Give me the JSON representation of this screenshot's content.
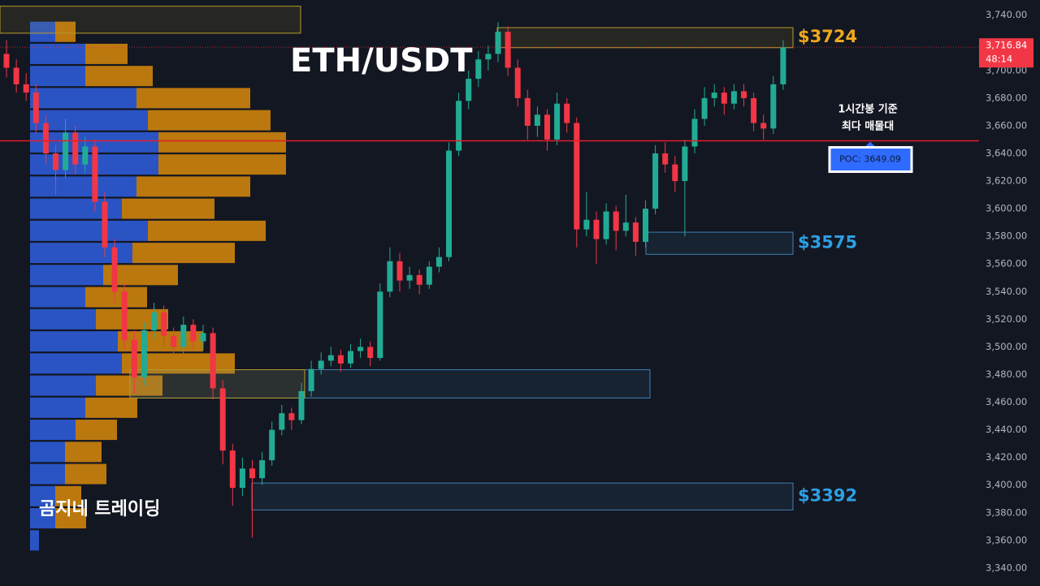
{
  "chart_data": {
    "type": "candlestick",
    "title": "ETH/USDT",
    "watermark": "곰지네 트레이딩",
    "annotation": [
      "1시간봉 기준",
      "최다 매물대"
    ],
    "ylim": [
      3327,
      3751
    ],
    "yticks": [
      {
        "value": 3340,
        "label": "3,340.00"
      },
      {
        "value": 3360,
        "label": "3,360.00"
      },
      {
        "value": 3380,
        "label": "3,380.00"
      },
      {
        "value": 3400,
        "label": "3,400.00"
      },
      {
        "value": 3420,
        "label": "3,420.00"
      },
      {
        "value": 3440,
        "label": "3,440.00"
      },
      {
        "value": 3460,
        "label": "3,460.00"
      },
      {
        "value": 3480,
        "label": "3,480.00"
      },
      {
        "value": 3500,
        "label": "3,500.00"
      },
      {
        "value": 3520,
        "label": "3,520.00"
      },
      {
        "value": 3540,
        "label": "3,540.00"
      },
      {
        "value": 3560,
        "label": "3,560.00"
      },
      {
        "value": 3580,
        "label": "3,580.00"
      },
      {
        "value": 3600,
        "label": "3,600.00"
      },
      {
        "value": 3620,
        "label": "3,620.00"
      },
      {
        "value": 3640,
        "label": "3,640.00"
      },
      {
        "value": 3660,
        "label": "3,660.00"
      },
      {
        "value": 3680,
        "label": "3,680.00"
      },
      {
        "value": 3700,
        "label": "3,700.00"
      },
      {
        "value": 3720,
        "label": "3,720.00"
      },
      {
        "value": 3740,
        "label": "3,740.00"
      }
    ],
    "up_color": "#22ab94",
    "down_color": "#f23645",
    "ohlc": [
      [
        3712,
        3722,
        3695,
        3702
      ],
      [
        3702,
        3708,
        3684,
        3690
      ],
      [
        3690,
        3698,
        3678,
        3684
      ],
      [
        3684,
        3690,
        3655,
        3662
      ],
      [
        3662,
        3668,
        3632,
        3640
      ],
      [
        3640,
        3646,
        3610,
        3628
      ],
      [
        3628,
        3665,
        3622,
        3655
      ],
      [
        3655,
        3660,
        3625,
        3632
      ],
      [
        3632,
        3652,
        3626,
        3645
      ],
      [
        3645,
        3650,
        3598,
        3605
      ],
      [
        3605,
        3612,
        3565,
        3572
      ],
      [
        3572,
        3578,
        3532,
        3540
      ],
      [
        3540,
        3546,
        3498,
        3505
      ],
      [
        3505,
        3512,
        3466,
        3478
      ],
      [
        3478,
        3518,
        3472,
        3512
      ],
      [
        3512,
        3532,
        3506,
        3525
      ],
      [
        3525,
        3530,
        3500,
        3508
      ],
      [
        3508,
        3514,
        3494,
        3500
      ],
      [
        3500,
        3522,
        3495,
        3516
      ],
      [
        3516,
        3520,
        3498,
        3504
      ],
      [
        3504,
        3516,
        3498,
        3510
      ],
      [
        3510,
        3514,
        3462,
        3470
      ],
      [
        3470,
        3476,
        3415,
        3425
      ],
      [
        3425,
        3430,
        3385,
        3398
      ],
      [
        3398,
        3420,
        3392,
        3412
      ],
      [
        3412,
        3418,
        3362,
        3405
      ],
      [
        3405,
        3424,
        3400,
        3418
      ],
      [
        3418,
        3446,
        3414,
        3440
      ],
      [
        3440,
        3458,
        3436,
        3452
      ],
      [
        3452,
        3456,
        3440,
        3447
      ],
      [
        3447,
        3474,
        3444,
        3468
      ],
      [
        3468,
        3490,
        3464,
        3484
      ],
      [
        3484,
        3496,
        3480,
        3490
      ],
      [
        3490,
        3500,
        3486,
        3494
      ],
      [
        3494,
        3498,
        3482,
        3488
      ],
      [
        3488,
        3502,
        3485,
        3497
      ],
      [
        3497,
        3506,
        3492,
        3500
      ],
      [
        3500,
        3504,
        3486,
        3492
      ],
      [
        3492,
        3546,
        3490,
        3540
      ],
      [
        3540,
        3572,
        3536,
        3562
      ],
      [
        3562,
        3568,
        3540,
        3548
      ],
      [
        3548,
        3558,
        3542,
        3552
      ],
      [
        3552,
        3556,
        3538,
        3545
      ],
      [
        3545,
        3562,
        3542,
        3558
      ],
      [
        3558,
        3572,
        3554,
        3565
      ],
      [
        3565,
        3648,
        3562,
        3642
      ],
      [
        3642,
        3684,
        3638,
        3678
      ],
      [
        3678,
        3700,
        3672,
        3694
      ],
      [
        3694,
        3714,
        3688,
        3708
      ],
      [
        3708,
        3718,
        3700,
        3712
      ],
      [
        3712,
        3735,
        3706,
        3728
      ],
      [
        3728,
        3732,
        3696,
        3702
      ],
      [
        3702,
        3708,
        3674,
        3680
      ],
      [
        3680,
        3686,
        3650,
        3660
      ],
      [
        3660,
        3674,
        3652,
        3668
      ],
      [
        3668,
        3672,
        3642,
        3650
      ],
      [
        3650,
        3684,
        3646,
        3676
      ],
      [
        3676,
        3680,
        3655,
        3662
      ],
      [
        3662,
        3666,
        3572,
        3585
      ],
      [
        3585,
        3612,
        3580,
        3592
      ],
      [
        3592,
        3598,
        3560,
        3578
      ],
      [
        3578,
        3604,
        3574,
        3598
      ],
      [
        3598,
        3602,
        3570,
        3584
      ],
      [
        3584,
        3610,
        3580,
        3590
      ],
      [
        3590,
        3594,
        3566,
        3576
      ],
      [
        3576,
        3606,
        3572,
        3600
      ],
      [
        3600,
        3646,
        3596,
        3640
      ],
      [
        3640,
        3648,
        3626,
        3632
      ],
      [
        3632,
        3638,
        3612,
        3620
      ],
      [
        3620,
        3650,
        3580,
        3645
      ],
      [
        3645,
        3672,
        3640,
        3665
      ],
      [
        3665,
        3688,
        3660,
        3680
      ],
      [
        3680,
        3690,
        3674,
        3684
      ],
      [
        3684,
        3688,
        3668,
        3676
      ],
      [
        3676,
        3690,
        3672,
        3685
      ],
      [
        3685,
        3690,
        3674,
        3680
      ],
      [
        3680,
        3684,
        3656,
        3662
      ],
      [
        3662,
        3668,
        3650,
        3658
      ],
      [
        3658,
        3696,
        3654,
        3690
      ],
      [
        3690,
        3722,
        3686,
        3716.84
      ]
    ],
    "volume_profile": {
      "buy_color": "#2f5fe0",
      "sell_color": "#d98a0b",
      "prices": [
        3728,
        3712,
        3696,
        3680,
        3664,
        3648,
        3632,
        3616,
        3600,
        3584,
        3568,
        3552,
        3536,
        3520,
        3504,
        3488,
        3472,
        3456,
        3440,
        3424,
        3408,
        3392,
        3376,
        3360
      ],
      "buy": [
        31,
        68,
        68,
        131,
        145,
        158,
        158,
        131,
        113,
        145,
        126,
        90,
        68,
        81,
        108,
        113,
        81,
        68,
        56,
        43,
        43,
        31,
        31,
        11
      ],
      "sell": [
        25,
        52,
        83,
        140,
        151,
        157,
        157,
        140,
        114,
        145,
        126,
        92,
        76,
        89,
        105,
        139,
        82,
        64,
        51,
        45,
        51,
        32,
        38,
        0
      ]
    },
    "zones": [
      {
        "low": 3727,
        "high": 3746.5,
        "color": "#b89a2c"
      },
      {
        "low": 3716.5,
        "high": 3731,
        "color": "#b89a2c",
        "label": "$3724",
        "value": 3724,
        "label_color": "#f0a81d"
      },
      {
        "low": 3567,
        "high": 3583,
        "color": "#3f7fb0",
        "label": "$3575",
        "value": 3575,
        "label_color": "#2d9fe3"
      },
      {
        "low": 3463,
        "high": 3483.5,
        "color": "#3f7fb0"
      },
      {
        "low": 3463,
        "high": 3483.5,
        "color": "#b89a2c"
      },
      {
        "low": 3382,
        "high": 3401.5,
        "color": "#3f7fb0",
        "label": "$3392",
        "value": 3392,
        "label_color": "#2d9fe3"
      }
    ],
    "poc": {
      "value": 3649.09,
      "label": "POC: 3649.09"
    },
    "last_price": {
      "value": 3716.84,
      "label": "3,716.84"
    },
    "countdown": "48:14"
  }
}
